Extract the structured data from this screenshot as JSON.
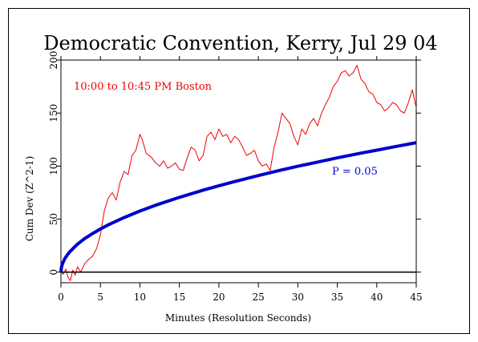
{
  "chart_data": {
    "type": "line",
    "title": "Democratic Convention, Kerry, Jul 29 04",
    "xlabel": "Minutes (Resolution Seconds)",
    "ylabel": "Cum Dev (Z^2-1)",
    "xlim": [
      0,
      45
    ],
    "ylim": [
      -10,
      200
    ],
    "x_ticks": [
      0,
      5,
      10,
      15,
      20,
      25,
      30,
      35,
      40,
      45
    ],
    "y_ticks": [
      0,
      50,
      100,
      150,
      200
    ],
    "grid": false,
    "annotations": [
      {
        "text": "10:00 to 10:45 PM Boston",
        "color": "#ee0000"
      },
      {
        "text": "P = 0.05",
        "color": "#0000cc"
      }
    ],
    "series": [
      {
        "color": "#ee0000",
        "x": [
          0,
          0.3,
          0.6,
          0.9,
          1.2,
          1.5,
          1.8,
          2.1,
          2.5,
          3.0,
          3.5,
          4.0,
          4.5,
          5.0,
          5.5,
          6.0,
          6.5,
          7.0,
          7.5,
          8.0,
          8.5,
          9.0,
          9.5,
          10.0,
          10.3,
          10.8,
          11.5,
          12.0,
          12.5,
          13.0,
          13.5,
          14.0,
          14.5,
          15.0,
          15.5,
          16.0,
          16.5,
          17.0,
          17.5,
          18.0,
          18.5,
          19.0,
          19.5,
          20.0,
          20.5,
          21.0,
          21.5,
          22.0,
          22.5,
          23.0,
          23.5,
          24.0,
          24.5,
          25.0,
          25.5,
          26.0,
          26.5,
          27.0,
          27.5,
          28.0,
          28.5,
          29.0,
          29.5,
          30.0,
          30.5,
          31.0,
          31.5,
          32.0,
          32.5,
          33.0,
          33.5,
          34.0,
          34.5,
          35.0,
          35.5,
          36.0,
          36.5,
          37.0,
          37.5,
          38.0,
          38.5,
          39.0,
          39.5,
          40.0,
          40.5,
          41.0,
          41.5,
          42.0,
          42.5,
          43.0,
          43.5,
          44.0,
          44.5,
          45.0
        ],
        "values": [
          0,
          -2,
          3,
          -5,
          -8,
          2,
          -3,
          5,
          0,
          8,
          12,
          15,
          22,
          35,
          58,
          70,
          75,
          68,
          85,
          95,
          92,
          110,
          115,
          130,
          125,
          112,
          108,
          103,
          100,
          105,
          98,
          100,
          103,
          97,
          96,
          108,
          118,
          115,
          105,
          110,
          128,
          132,
          125,
          135,
          128,
          130,
          122,
          128,
          125,
          118,
          110,
          112,
          115,
          105,
          100,
          102,
          96,
          118,
          132,
          150,
          145,
          140,
          128,
          120,
          135,
          130,
          140,
          145,
          138,
          150,
          158,
          165,
          175,
          180,
          188,
          190,
          185,
          188,
          195,
          182,
          178,
          170,
          168,
          160,
          158,
          152,
          155,
          160,
          158,
          152,
          150,
          160,
          172,
          155
        ]
      },
      {
        "name": "P = 0.05",
        "color": "#0000cc",
        "x": [
          0,
          0.05,
          0.2,
          0.5,
          1,
          2,
          3,
          4,
          5,
          6,
          8,
          10,
          12,
          15,
          18,
          20,
          22,
          25,
          28,
          30,
          32,
          35,
          38,
          40,
          42,
          45
        ],
        "values": [
          0,
          4.1,
          8.1,
          12.9,
          18.2,
          25.8,
          31.6,
          36.4,
          40.7,
          44.6,
          51.5,
          57.6,
          63.1,
          70.5,
          77.3,
          81.5,
          85.4,
          91.1,
          96.4,
          99.8,
          103.0,
          107.8,
          112.2,
          115.0,
          117.9,
          122.1
        ]
      },
      {
        "color": "#000000",
        "x": [
          0,
          45
        ],
        "values": [
          0,
          0
        ]
      }
    ]
  }
}
